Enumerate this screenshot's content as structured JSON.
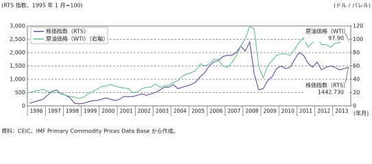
{
  "chart_data": {
    "type": "line",
    "left_unit_label": "(RTS 指数、1995 年 1 月=100)",
    "right_unit_label": "(ドル / バレル)",
    "x_unit_label": "(年月)",
    "source": "資料：CEIC、IMF Primary Commodity Prices Data Base から作成。",
    "categories": [
      null,
      "1996",
      null,
      null,
      null,
      "1997",
      null,
      null,
      null,
      "1998",
      null,
      null,
      null,
      "1999",
      null,
      null,
      null,
      "2000",
      null,
      null,
      null,
      "2001",
      null,
      null,
      null,
      "2002",
      null,
      null,
      null,
      "2003",
      null,
      null,
      null,
      "2004",
      null,
      null,
      null,
      "2005",
      null,
      null,
      null,
      "2006",
      null,
      null,
      null,
      "2007",
      null,
      null,
      null,
      "2008",
      null,
      null,
      null,
      "2009",
      null,
      null,
      null,
      "2010",
      null,
      null,
      null,
      "2011",
      null,
      null,
      null,
      "2012",
      null,
      null,
      null,
      "2013",
      null,
      null
    ],
    "series": [
      {
        "name": "株価指数（RTS）",
        "color": "#5b4ba3",
        "axis": "y",
        "values": [
          100,
          150,
          200,
          250,
          400,
          550,
          600,
          450,
          400,
          300,
          100,
          80,
          100,
          150,
          200,
          200,
          250,
          300,
          250,
          200,
          250,
          350,
          350,
          350,
          400,
          450,
          400,
          450,
          500,
          600,
          700,
          700,
          800,
          650,
          700,
          750,
          800,
          900,
          1100,
          1250,
          1500,
          1650,
          1700,
          1850,
          1900,
          1900,
          2000,
          2250,
          2050,
          2400,
          1200,
          600,
          650,
          950,
          1100,
          1400,
          1500,
          1400,
          1450,
          1750,
          2000,
          1900,
          1600,
          1450,
          1650,
          1350,
          1450,
          1500,
          1450,
          1350,
          1400,
          1442.73
        ]
      },
      {
        "name": "原油価格（WTI）（右軸）",
        "color": "#5cbf8e",
        "axis": "y2",
        "values": [
          20,
          22,
          23,
          25,
          22,
          20,
          20,
          19,
          16,
          14,
          13,
          11,
          13,
          18,
          22,
          25,
          29,
          30,
          32,
          30,
          28,
          27,
          26,
          20,
          21,
          26,
          28,
          28,
          33,
          28,
          30,
          31,
          35,
          38,
          45,
          48,
          50,
          53,
          63,
          60,
          63,
          70,
          70,
          60,
          58,
          65,
          75,
          90,
          100,
          120,
          115,
          60,
          42,
          60,
          68,
          76,
          78,
          78,
          76,
          85,
          95,
          102,
          88,
          95,
          102,
          92,
          92,
          88,
          94,
          95,
          105,
          97.9
        ]
      }
    ],
    "annotations": [
      {
        "text": "原油価格（WTI）",
        "value_label": "97.90",
        "value": 97.9
      },
      {
        "text": "株価指数（RTS）",
        "value_label": "1442.730",
        "value": 1442.73
      }
    ],
    "ylim": [
      0,
      3000
    ],
    "yticks": [
      0,
      500,
      {
        "value": 1000,
        "label": "1,000"
      },
      {
        "value": 1500,
        "label": "1,500"
      },
      {
        "value": 2000,
        "label": "2,000"
      },
      {
        "value": 2500,
        "label": "2,500"
      },
      {
        "value": 3000,
        "label": "3,000"
      }
    ],
    "y2lim": [
      0,
      120
    ],
    "y2ticks": [
      0,
      20,
      40,
      60,
      80,
      100,
      120
    ],
    "grid": true,
    "legend": "upper left"
  }
}
